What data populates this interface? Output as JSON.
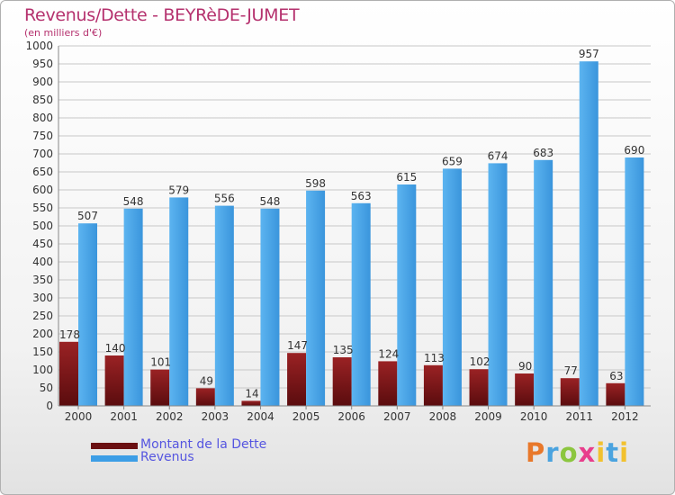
{
  "header": {
    "title": "Revenus/Dette - BEYRèDE-JUMET",
    "subtitle": "(en milliers d'€)"
  },
  "legend": {
    "dette_label": "Montant de la Dette",
    "revenus_label": "Revenus"
  },
  "logo": {
    "text": "Proxiti"
  },
  "colors": {
    "dette": "#7a1416",
    "revenus": "#3d9ee6",
    "title": "#b5316e",
    "legend_text": "#5555e0"
  },
  "chart_data": {
    "type": "bar",
    "title": "Revenus/Dette - BEYRèDE-JUMET",
    "subtitle": "(en milliers d'€)",
    "xlabel": "",
    "ylabel": "",
    "ylim": [
      0,
      1000
    ],
    "yticks": [
      0,
      50,
      100,
      150,
      200,
      250,
      300,
      350,
      400,
      450,
      500,
      550,
      600,
      650,
      700,
      750,
      800,
      850,
      900,
      950,
      1000
    ],
    "grid": true,
    "categories": [
      "2000",
      "2001",
      "2002",
      "2003",
      "2004",
      "2005",
      "2006",
      "2007",
      "2008",
      "2009",
      "2010",
      "2011",
      "2012"
    ],
    "series": [
      {
        "name": "Montant de la Dette",
        "values": [
          178,
          140,
          101,
          49,
          14,
          147,
          135,
          124,
          113,
          102,
          90,
          77,
          63
        ]
      },
      {
        "name": "Revenus",
        "values": [
          507,
          548,
          579,
          556,
          548,
          598,
          563,
          615,
          659,
          674,
          683,
          957,
          690
        ]
      }
    ],
    "legend_position": "bottom-left"
  }
}
